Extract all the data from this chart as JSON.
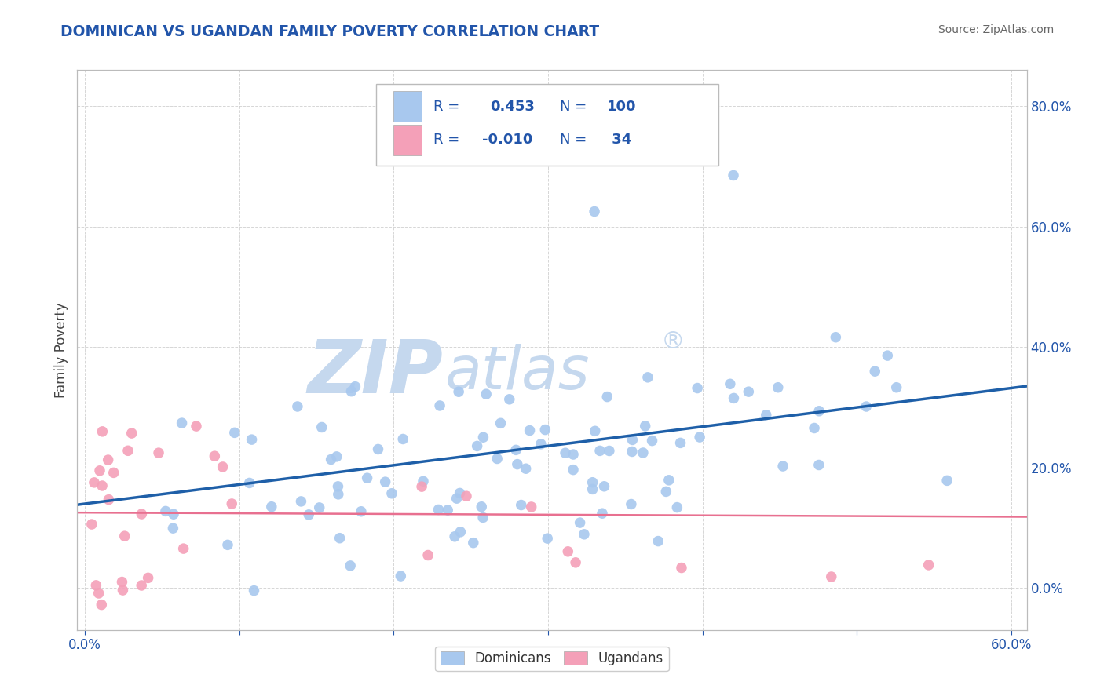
{
  "title": "DOMINICAN VS UGANDAN FAMILY POVERTY CORRELATION CHART",
  "source": "Source: ZipAtlas.com",
  "ylabel": "Family Poverty",
  "xlim": [
    -0.005,
    0.61
  ],
  "ylim": [
    -0.07,
    0.86
  ],
  "x_ticks": [
    0.0,
    0.1,
    0.2,
    0.3,
    0.4,
    0.5,
    0.6
  ],
  "x_tick_labels": [
    "0.0%",
    "",
    "",
    "",
    "",
    "",
    "60.0%"
  ],
  "y_ticks_right": [
    0.0,
    0.2,
    0.4,
    0.6,
    0.8
  ],
  "y_tick_labels_right": [
    "0.0%",
    "20.0%",
    "40.0%",
    "60.0%",
    "80.0%"
  ],
  "dominican_R": 0.453,
  "dominican_N": 100,
  "ugandan_R": -0.01,
  "ugandan_N": 34,
  "dominican_color": "#A8C8EE",
  "ugandan_color": "#F4A0B8",
  "dominican_line_color": "#1E5FA8",
  "ugandan_line_color": "#E87090",
  "title_color": "#2255AA",
  "label_color": "#2255AA",
  "source_color": "#666666",
  "watermark_zip": "ZIP",
  "watermark_atlas": "atlas",
  "watermark_reg": "®",
  "watermark_color": "#C5D8EE",
  "grid_color": "#CCCCCC",
  "background_color": "#FFFFFF",
  "legend_text_color": "#2255AA",
  "seed": 42
}
